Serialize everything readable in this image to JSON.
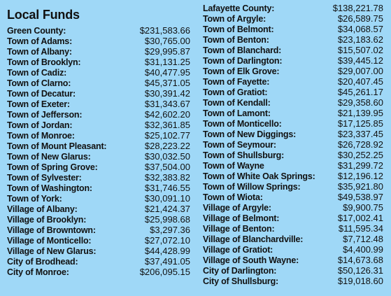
{
  "left": {
    "title": "Local Funds",
    "rows": [
      {
        "name": "Green County:",
        "amount": "$231,583.66"
      },
      {
        "name": "Town of Adams:",
        "amount": "$30,765.00"
      },
      {
        "name": "Town of Albany:",
        "amount": "$29,995.87"
      },
      {
        "name": "Town of Brooklyn:",
        "amount": "$31,131.25"
      },
      {
        "name": "Town of Cadiz:",
        "amount": "$40,477.95"
      },
      {
        "name": "Town of Clarno:",
        "amount": "$45,371.05"
      },
      {
        "name": "Town of Decatur:",
        "amount": "$30,391.42"
      },
      {
        "name": "Town of Exeter:",
        "amount": "$31,343.67"
      },
      {
        "name": "Town of Jefferson:",
        "amount": "$42,602.20"
      },
      {
        "name": "Town of Jordan:",
        "amount": "$32,361.85"
      },
      {
        "name": "Town of Monroe:",
        "amount": "$25,102.77"
      },
      {
        "name": "Town of Mount Pleasant:",
        "amount": "$28,223.22"
      },
      {
        "name": "Town of New Glarus:",
        "amount": "$30,032.50"
      },
      {
        "name": "Town of Spring Grove:",
        "amount": "$37,504.00"
      },
      {
        "name": "Town of Sylvester:",
        "amount": "$32,383.82"
      },
      {
        "name": "Town of Washington:",
        "amount": "$31,746.55"
      },
      {
        "name": "Town of York:",
        "amount": "$30,091.10"
      },
      {
        "name": "Village of Albany:",
        "amount": "$21,424.37"
      },
      {
        "name": "Village of Brooklyn:",
        "amount": "$25,998.68"
      },
      {
        "name": "Village of Browntown:",
        "amount": "$3,297.36"
      },
      {
        "name": "Village of Monticello:",
        "amount": "$27,072.10"
      },
      {
        "name": "Village of New Glarus:",
        "amount": "$44,428.99"
      },
      {
        "name": "City of Brodhead:",
        "amount": "$37,491.05"
      },
      {
        "name": "City of Monroe:",
        "amount": "$206,095.15"
      }
    ]
  },
  "right": {
    "rows": [
      {
        "name": "Lafayette County:",
        "amount": "$138,221.78"
      },
      {
        "name": "Town of Argyle:",
        "amount": "$26,589.75"
      },
      {
        "name": "Town of Belmont:",
        "amount": "$34,068.57"
      },
      {
        "name": "Town of Benton:",
        "amount": "$23,183.62"
      },
      {
        "name": "Town of Blanchard:",
        "amount": "$15,507.02"
      },
      {
        "name": "Town of Darlington:",
        "amount": "$39,445.12"
      },
      {
        "name": "Town of Elk Grove:",
        "amount": "$29,007.00"
      },
      {
        "name": "Town of Fayette:",
        "amount": "$20,407.45"
      },
      {
        "name": "Town of Gratiot:",
        "amount": "$45,261.17"
      },
      {
        "name": "Town of Kendall:",
        "amount": "$29,358.60"
      },
      {
        "name": "Town of Lamont:",
        "amount": "$21,139.95"
      },
      {
        "name": "Town of Monticello:",
        "amount": "$17,125.85"
      },
      {
        "name": "Town of New Diggings:",
        "amount": "$23,337.45"
      },
      {
        "name": "Town of Seymour:",
        "amount": "$26,728.92"
      },
      {
        "name": "Town of Shullsburg:",
        "amount": "$30,252.25"
      },
      {
        "name": "Town of Wayne",
        "amount": "$31,299.72"
      },
      {
        "name": "Town of White Oak Springs:",
        "amount": "$12,196.12"
      },
      {
        "name": "Town of Willow Springs:",
        "amount": "$35,921.80"
      },
      {
        "name": "Town of Wiota:",
        "amount": "$49,538.97"
      },
      {
        "name": "Village of Argyle:",
        "amount": "$9,900.75"
      },
      {
        "name": "Village of Belmont:",
        "amount": "$17,002.41"
      },
      {
        "name": "Village of Benton:",
        "amount": "$11,595.34"
      },
      {
        "name": "Village of Blanchardville:",
        "amount": "$7,712.48"
      },
      {
        "name": "Village of Gratiot:",
        "amount": "$4,400.99"
      },
      {
        "name": "Village of South Wayne:",
        "amount": "$14,673.68"
      },
      {
        "name": "City of Darlington:",
        "amount": "$50,126.31"
      },
      {
        "name": "City of Shullsburg:",
        "amount": "$19,018.60"
      }
    ]
  }
}
